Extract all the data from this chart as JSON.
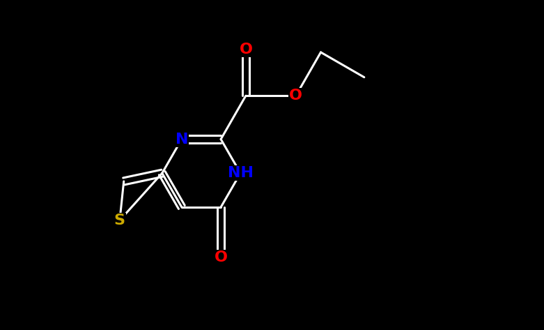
{
  "background_color": "#000000",
  "bond_color": "#ffffff",
  "bond_width": 2.2,
  "atom_colors": {
    "N": "#0000ff",
    "O": "#ff0000",
    "S": "#ccaa00",
    "C": "#ffffff"
  },
  "font_size_atoms": 16,
  "figsize": [
    7.81,
    4.73
  ],
  "xlim": [
    0,
    10
  ],
  "ylim": [
    0,
    6
  ]
}
